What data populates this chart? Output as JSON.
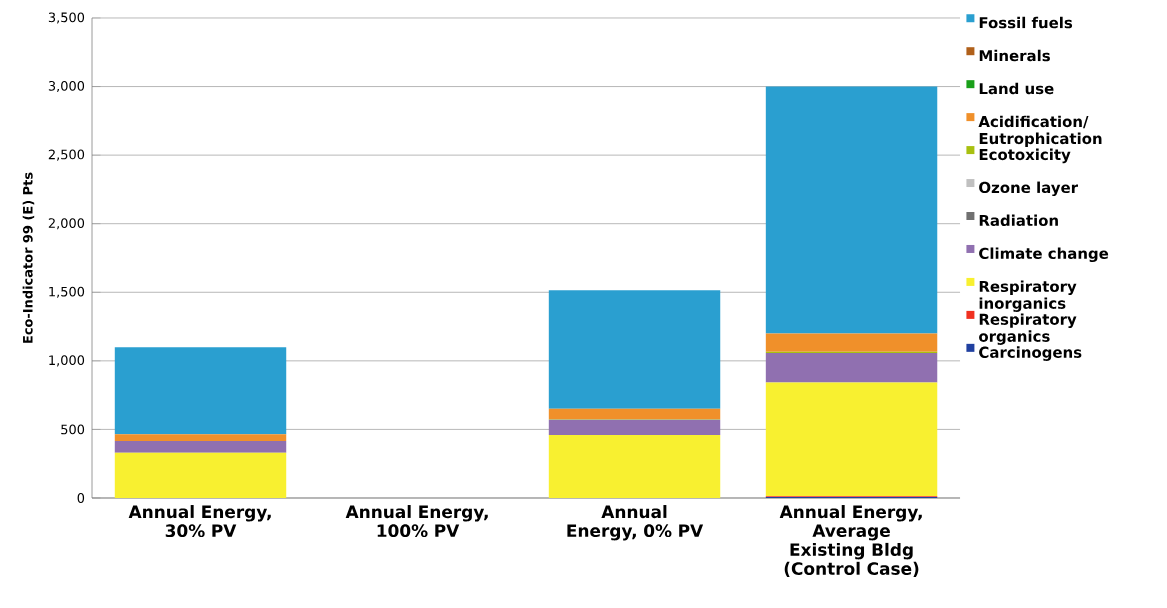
{
  "chart_data": {
    "type": "bar",
    "stacked": true,
    "ylabel": "Eco-Indicator 99 (E) Pts",
    "categories": [
      "Annual Energy, 30% PV",
      "Annual Energy, 100% PV",
      "Annual Energy, 0% PV",
      "Annual Energy, Average Existing Bldg (Control Case)"
    ],
    "series": [
      {
        "name": "Carcinogens",
        "color": "#2040a0",
        "values": [
          0,
          0,
          0,
          8
        ]
      },
      {
        "name": "Respiratory organics",
        "color": "#f03020",
        "values": [
          0,
          0,
          0,
          4
        ]
      },
      {
        "name": "Respiratory inorganics",
        "color": "#f8f030",
        "values": [
          330,
          0,
          460,
          830
        ]
      },
      {
        "name": "Climate change",
        "color": "#9070b0",
        "values": [
          85,
          0,
          110,
          215
        ]
      },
      {
        "name": "Radiation",
        "color": "#707070",
        "values": [
          0,
          0,
          0,
          0
        ]
      },
      {
        "name": "Ozone layer",
        "color": "#c0c0c0",
        "values": [
          0,
          0,
          0,
          0
        ]
      },
      {
        "name": "Ecotoxicity",
        "color": "#a8c010",
        "values": [
          0,
          0,
          5,
          10
        ]
      },
      {
        "name": "Acidification/ Eutrophication",
        "color": "#f0902a",
        "values": [
          50,
          0,
          75,
          132
        ]
      },
      {
        "name": "Land use",
        "color": "#1aa01a",
        "values": [
          0,
          0,
          0,
          0
        ]
      },
      {
        "name": "Minerals",
        "color": "#b0601a",
        "values": [
          0,
          0,
          0,
          0
        ]
      },
      {
        "name": "Fossil fuels",
        "color": "#2a9fd0",
        "values": [
          635,
          0,
          865,
          1801
        ]
      }
    ],
    "ylim": [
      0,
      3500
    ],
    "yticks": [
      0,
      500,
      {
        "value": 1000,
        "label": "1,000"
      },
      {
        "value": 1500,
        "label": "1,500"
      },
      {
        "value": 2000,
        "label": "2,000"
      },
      {
        "value": 2500,
        "label": "2,500"
      },
      {
        "value": 3000,
        "label": "3,000"
      },
      {
        "value": 3500,
        "label": "3,500"
      }
    ],
    "grid": "y",
    "legend": "right"
  }
}
